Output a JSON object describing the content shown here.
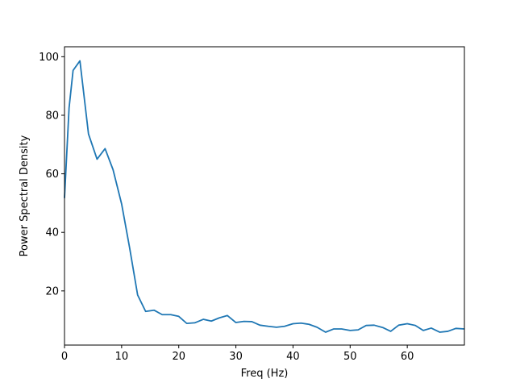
{
  "chart_data": {
    "type": "line",
    "title": "",
    "xlabel": "Freq (Hz)",
    "ylabel": "Power Spectral Density",
    "xlim": [
      0,
      70
    ],
    "ylim": [
      1.5,
      103.4
    ],
    "xticks": [
      0,
      10,
      20,
      30,
      40,
      50,
      60
    ],
    "yticks": [
      20,
      40,
      60,
      80,
      100
    ],
    "grid": false,
    "legend": "none",
    "line_color": "#1f77b4",
    "series": [
      {
        "x": [
          0,
          0.8,
          1.5,
          2.7,
          4.2,
          5.7,
          7.1,
          8.5,
          10.0,
          11.4,
          12.8,
          14.2,
          15.7,
          17.1,
          18.6,
          20.0,
          21.4,
          22.8,
          24.3,
          25.7,
          27.1,
          28.5,
          30.0,
          31.4,
          32.8,
          34.2,
          35.7,
          37.1,
          38.5,
          40.0,
          41.4,
          42.8,
          44.2,
          45.7,
          47.1,
          48.5,
          50.0,
          51.4,
          52.8,
          54.2,
          55.7,
          57.1,
          58.5,
          60.0,
          61.4,
          62.8,
          64.2,
          65.7,
          67.1,
          68.5,
          70.0
        ],
        "y": [
          51.7,
          82.5,
          95.3,
          98.6,
          73.6,
          65.0,
          68.6,
          61.4,
          49.7,
          34.7,
          18.6,
          13.0,
          13.4,
          11.9,
          11.9,
          11.3,
          8.9,
          9.1,
          10.3,
          9.7,
          10.8,
          11.6,
          9.2,
          9.6,
          9.5,
          8.3,
          7.9,
          7.6,
          7.9,
          8.8,
          9.0,
          8.6,
          7.6,
          5.9,
          7.0,
          7.0,
          6.5,
          6.7,
          8.2,
          8.3,
          7.5,
          6.2,
          8.3,
          8.8,
          8.2,
          6.5,
          7.3,
          5.9,
          6.2,
          7.2,
          7.0
        ]
      }
    ]
  }
}
